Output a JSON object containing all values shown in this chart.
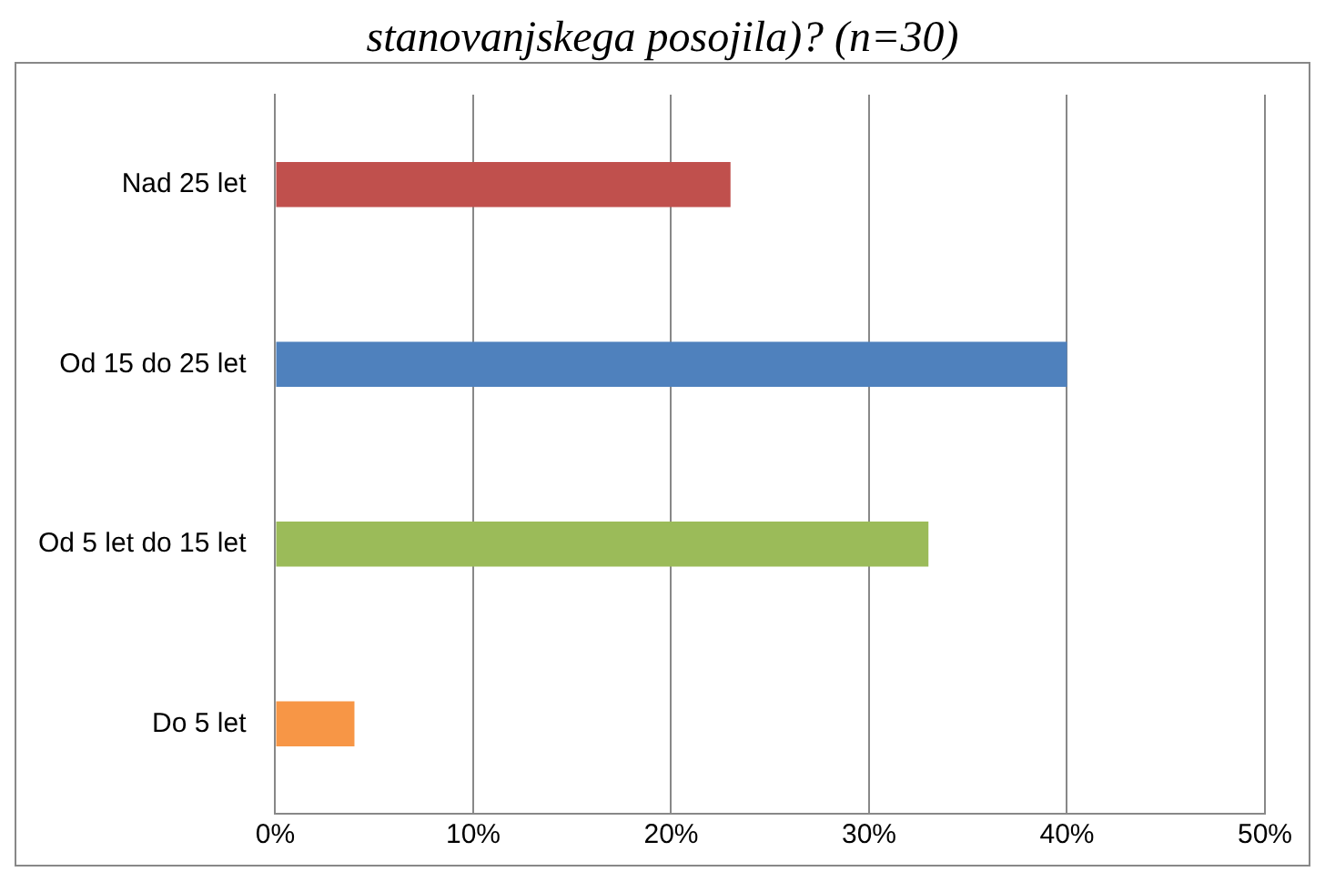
{
  "chart_data": {
    "type": "bar",
    "orientation": "horizontal",
    "title": "stanovanjskega posojila)? (n=30)",
    "categories": [
      "Nad 25 let",
      "Od 15 do 25 let",
      "Od 5 let do 15 let",
      "Do 5 let"
    ],
    "values": [
      23,
      40,
      33,
      4
    ],
    "colors": [
      "#c0504d",
      "#4f81bd",
      "#9bbb59",
      "#f79646"
    ],
    "xlim": [
      0,
      50
    ],
    "xticks": [
      {
        "value": 0,
        "label": "0%"
      },
      {
        "value": 10,
        "label": "10%"
      },
      {
        "value": 20,
        "label": "20%"
      },
      {
        "value": 30,
        "label": "30%"
      },
      {
        "value": 40,
        "label": "40%"
      },
      {
        "value": 50,
        "label": "50%"
      }
    ],
    "grid": "x"
  }
}
